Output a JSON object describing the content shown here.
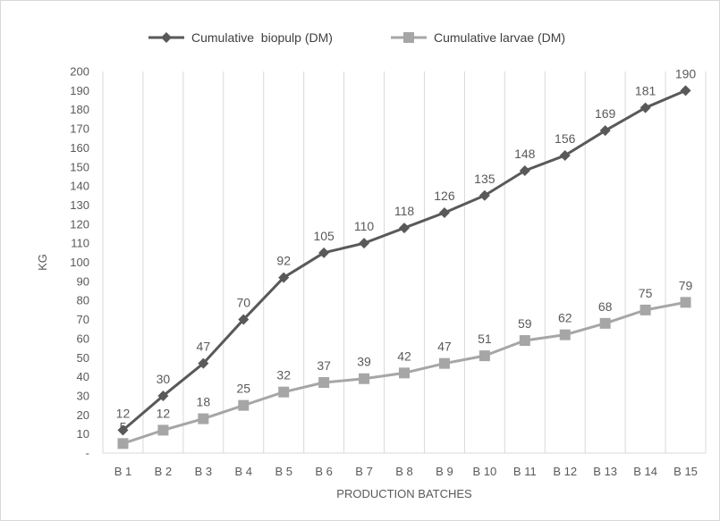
{
  "chart_data": {
    "type": "line",
    "categories": [
      "B1",
      "B2",
      "B3",
      "B4",
      "B5",
      "B6",
      "B7",
      "B8",
      "B9",
      "B10",
      "B11",
      "B12",
      "B13",
      "B14",
      "B15"
    ],
    "series": [
      {
        "name": "Cumulative  biopulp (DM)",
        "values": [
          12,
          30,
          47,
          70,
          92,
          105,
          110,
          118,
          126,
          135,
          148,
          156,
          169,
          181,
          190
        ],
        "color": "#595959",
        "marker": "diamond"
      },
      {
        "name": "Cumulative larvae (DM)",
        "values": [
          5,
          12,
          18,
          25,
          32,
          37,
          39,
          42,
          47,
          51,
          59,
          62,
          68,
          75,
          79
        ],
        "color": "#a6a6a6",
        "marker": "square"
      }
    ],
    "xlabel": "PRODUCTION BATCHES",
    "ylabel": "KG",
    "ylim": [
      0,
      200
    ],
    "ytick_step": 10,
    "ytick_zero_label": "-",
    "grid": "vertical",
    "legend_position": "top"
  }
}
